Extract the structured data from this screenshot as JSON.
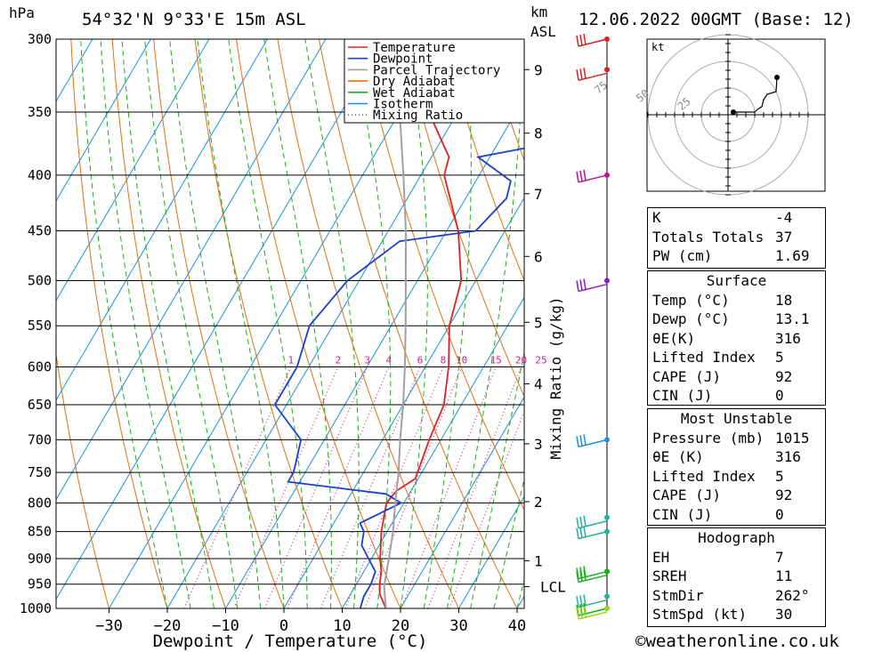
{
  "header": {
    "pressure_unit": "hPa",
    "location": "54°32'N  9°33'E  15m  ASL",
    "height_unit_line1": "km",
    "height_unit_line2": "ASL",
    "datetime": "12.06.2022  00GMT  (Base: 12)"
  },
  "chart_data": {
    "type": "line",
    "title": "54°32'N  9°33'E  15m  ASL",
    "xlabel": "Dewpoint / Temperature (°C)",
    "ylabel": "hPa",
    "x_ticks": [
      -30,
      -20,
      -10,
      0,
      10,
      20,
      30,
      40
    ],
    "x_tick_labels": [
      "−30",
      "−20",
      "−10",
      "0",
      "10",
      "20",
      "30",
      "40"
    ],
    "y_ticks": [
      300,
      350,
      400,
      450,
      500,
      550,
      600,
      650,
      700,
      750,
      800,
      850,
      900,
      950,
      1000
    ],
    "y_log": true,
    "height_axis": {
      "label_unit": "km",
      "ticks": [
        {
          "label": "9",
          "p": 320
        },
        {
          "label": "8",
          "p": 366
        },
        {
          "label": "7",
          "p": 416
        },
        {
          "label": "6",
          "p": 475
        },
        {
          "label": "5",
          "p": 546
        },
        {
          "label": "4",
          "p": 622
        },
        {
          "label": "3",
          "p": 706
        },
        {
          "label": "2",
          "p": 798
        },
        {
          "label": "1",
          "p": 904
        },
        {
          "label": "LCL",
          "p": 955
        }
      ]
    },
    "mixing_ratio": {
      "label": "Mixing Ratio (g/kg)",
      "values": [
        "1",
        "2",
        "3",
        "4",
        "6",
        "8",
        "10",
        "15",
        "20",
        "25"
      ]
    },
    "legend": {
      "placement": "top-right",
      "entries": [
        {
          "name": "Temperature",
          "color": "#e02020",
          "style": "solid"
        },
        {
          "name": "Dewpoint",
          "color": "#1a3fd0",
          "style": "solid"
        },
        {
          "name": "Parcel Trajectory",
          "color": "#a0a0a0",
          "style": "solid"
        },
        {
          "name": "Dry Adiabat",
          "color": "#e07010",
          "style": "solid"
        },
        {
          "name": "Wet Adiabat",
          "color": "#18b018",
          "style": "solid"
        },
        {
          "name": "Isotherm",
          "color": "#1a90d8",
          "style": "solid"
        },
        {
          "name": "Mixing Ratio",
          "color": "#cc2288",
          "style": "dotted"
        }
      ]
    },
    "series": [
      {
        "name": "Temperature",
        "points": [
          [
            1000,
            17.5
          ],
          [
            970,
            15
          ],
          [
            950,
            14
          ],
          [
            925,
            13
          ],
          [
            900,
            11.5
          ],
          [
            850,
            9
          ],
          [
            800,
            7
          ],
          [
            780,
            7.5
          ],
          [
            760,
            9.5
          ],
          [
            700,
            8
          ],
          [
            650,
            7
          ],
          [
            600,
            4
          ],
          [
            550,
            0
          ],
          [
            500,
            -2.5
          ],
          [
            450,
            -8
          ],
          [
            400,
            -16
          ],
          [
            385,
            -17
          ],
          [
            350,
            -25
          ],
          [
            320,
            -32
          ],
          [
            300,
            -35
          ]
        ]
      },
      {
        "name": "Dewpoint",
        "points": [
          [
            1000,
            13.1
          ],
          [
            975,
            12.5
          ],
          [
            950,
            12.5
          ],
          [
            925,
            12
          ],
          [
            900,
            9.5
          ],
          [
            875,
            7
          ],
          [
            850,
            6
          ],
          [
            835,
            4.5
          ],
          [
            800,
            9.5
          ],
          [
            785,
            6
          ],
          [
            765,
            -12
          ],
          [
            750,
            -12
          ],
          [
            700,
            -14
          ],
          [
            650,
            -22
          ],
          [
            600,
            -22
          ],
          [
            550,
            -24
          ],
          [
            500,
            -22
          ],
          [
            460,
            -17
          ],
          [
            450,
            -5
          ],
          [
            420,
            -3
          ],
          [
            405,
            -4
          ],
          [
            385,
            -12
          ],
          [
            375,
            -2
          ],
          [
            350,
            -2
          ],
          [
            320,
            -10
          ],
          [
            300,
            -8
          ]
        ]
      },
      {
        "name": "Parcel Trajectory",
        "points": [
          [
            1000,
            17.5
          ],
          [
            955,
            15
          ],
          [
            900,
            13
          ],
          [
            850,
            11
          ],
          [
            800,
            8.5
          ],
          [
            750,
            6
          ],
          [
            700,
            3
          ],
          [
            650,
            0
          ],
          [
            600,
            -3.5
          ],
          [
            550,
            -7.5
          ],
          [
            500,
            -12
          ],
          [
            450,
            -17
          ],
          [
            400,
            -23
          ],
          [
            350,
            -30
          ],
          [
            300,
            -38
          ]
        ]
      }
    ],
    "wind_barbs": [
      {
        "p": 300,
        "color": "#e02020"
      },
      {
        "p": 320,
        "color": "#e02020"
      },
      {
        "p": 400,
        "color": "#c0108c"
      },
      {
        "p": 500,
        "color": "#8a1ad0"
      },
      {
        "p": 700,
        "color": "#1a90d8"
      },
      {
        "p": 825,
        "color": "#20b0a0"
      },
      {
        "p": 850,
        "color": "#20b0a0"
      },
      {
        "p": 925,
        "color": "#18b018"
      },
      {
        "p": 925,
        "color": "#18b018"
      },
      {
        "p": 975,
        "color": "#20b0a0"
      },
      {
        "p": 1000,
        "color": "#18b018"
      },
      {
        "p": 1000,
        "color": "#9ad818"
      }
    ],
    "hodograph": {
      "unit": "kt",
      "ring_labels": [
        "25",
        "50",
        "75"
      ]
    }
  },
  "indices": {
    "main": [
      {
        "label": "K",
        "value": "-4"
      },
      {
        "label": "Totals Totals",
        "value": "37"
      },
      {
        "label": "PW (cm)",
        "value": "1.69"
      }
    ],
    "surface_title": "Surface",
    "surface": [
      {
        "label": "Temp (°C)",
        "value": "18"
      },
      {
        "label": "Dewp (°C)",
        "value": "13.1"
      },
      {
        "label": "θE(K)",
        "value": "316"
      },
      {
        "label": "Lifted Index",
        "value": "5"
      },
      {
        "label": "CAPE (J)",
        "value": "92"
      },
      {
        "label": "CIN (J)",
        "value": "0"
      }
    ],
    "mu_title": "Most Unstable",
    "mu": [
      {
        "label": "Pressure (mb)",
        "value": "1015"
      },
      {
        "label": "θE (K)",
        "value": "316"
      },
      {
        "label": "Lifted Index",
        "value": "5"
      },
      {
        "label": "CAPE (J)",
        "value": "92"
      },
      {
        "label": "CIN (J)",
        "value": "0"
      }
    ],
    "hodo_title": "Hodograph",
    "hodo": [
      {
        "label": "EH",
        "value": "7"
      },
      {
        "label": "SREH",
        "value": "11"
      },
      {
        "label": "StmDir",
        "value": "262°"
      },
      {
        "label": "StmSpd (kt)",
        "value": "30"
      }
    ]
  },
  "footer": "©weatheronline.co.uk"
}
